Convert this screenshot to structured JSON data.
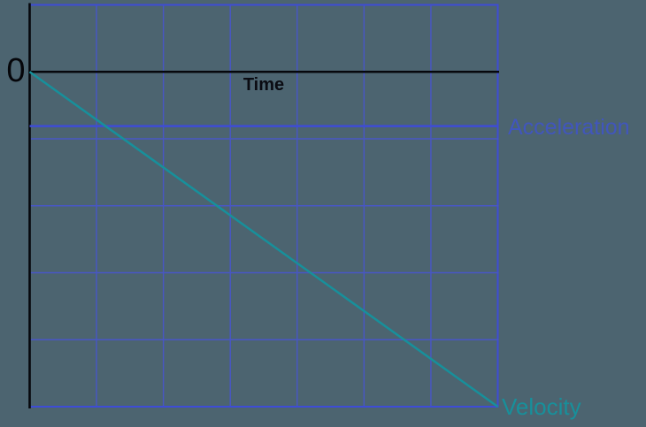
{
  "page": {
    "background_color": "#4c6470"
  },
  "chart_data": {
    "type": "line",
    "title": "",
    "xlabel": "Time",
    "ylabel": "",
    "origin_label": "0",
    "axes": {
      "x_range": [
        0,
        7
      ],
      "y_range": [
        -5,
        1
      ],
      "x_gridline_step": 1,
      "y_gridline_step": 1,
      "grid": true,
      "grid_color": "#4856c6",
      "grid_border_color": "#3e4cd6",
      "axis_color": "#06070c",
      "x_axis_position": 0,
      "legend": "series labels drawn at right edge of plot"
    },
    "series": [
      {
        "name": "Acceleration",
        "line_color": "#3e4cd6",
        "label_color": "#4156bd",
        "x": [
          0,
          7
        ],
        "y": [
          -0.81,
          -0.81
        ]
      },
      {
        "name": "Velocity",
        "line_color": "#17909b",
        "label_color": "#17909b",
        "x": [
          0,
          7
        ],
        "y": [
          0,
          -5
        ]
      }
    ]
  }
}
